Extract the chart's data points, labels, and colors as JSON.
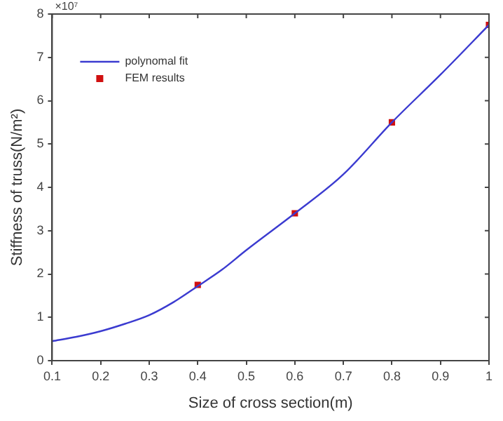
{
  "chart_data": {
    "type": "line",
    "xlabel": "Size of cross section(m)",
    "ylabel": "Stiffness of truss(N/m²)",
    "annotations": [
      "×10⁷"
    ],
    "xlim": [
      0.1,
      1
    ],
    "xticks": [
      0.1,
      0.2,
      0.3,
      0.4,
      0.5,
      0.6,
      0.7,
      0.8,
      0.9,
      1
    ],
    "ylim": [
      0,
      8
    ],
    "yticks": [
      0,
      1,
      2,
      3,
      4,
      5,
      6,
      7,
      8
    ],
    "grid": false,
    "legend": "top left",
    "series": [
      {
        "name": "polynomal fit",
        "type": "line",
        "color": "#3b3bd0",
        "marker": "none",
        "line_style": "solid",
        "x": [
          0.1,
          0.15,
          0.2,
          0.25,
          0.3,
          0.35,
          0.4,
          0.45,
          0.5,
          0.6,
          0.7,
          0.8,
          0.9,
          1
        ],
        "values": [
          0.45,
          0.55,
          0.68,
          0.85,
          1.05,
          1.35,
          1.72,
          2.1,
          2.55,
          3.4,
          4.3,
          5.5,
          6.6,
          7.75
        ]
      },
      {
        "name": "FEM results",
        "type": "scatter",
        "color": "#d01010",
        "marker": "square",
        "x": [
          0.4,
          0.6,
          0.8,
          1
        ],
        "values": [
          1.75,
          3.4,
          5.5,
          7.75
        ]
      }
    ]
  }
}
